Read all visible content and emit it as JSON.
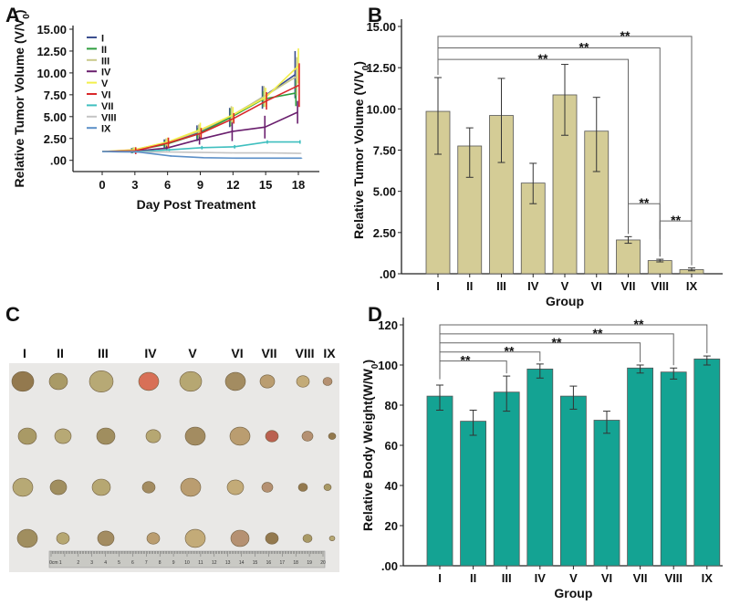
{
  "panels": {
    "a": "A",
    "b": "B",
    "c": "C",
    "d": "D"
  },
  "chart_data": [
    {
      "panel": "A",
      "type": "line",
      "xlabel": "Day Post Treatment",
      "ylabel_main": "Relative Tumor Volume (V/V",
      "ylabel_sub": "0",
      "ylabel_end": ")",
      "x": [
        0,
        3,
        6,
        9,
        12,
        15,
        18
      ],
      "ylim": [
        0,
        15
      ],
      "yticks": [
        ".00",
        "2.50",
        "5.00",
        "7.50",
        "10.00",
        "12.50",
        "15.00"
      ],
      "legend": "top-left",
      "series": [
        {
          "name": "I",
          "color": "#3c4f8f",
          "values": [
            1,
            1.1,
            1.9,
            3.1,
            4.9,
            7.2,
            9.8
          ],
          "err": [
            0,
            0.3,
            0.5,
            0.9,
            1.1,
            1.3,
            2.7
          ]
        },
        {
          "name": "II",
          "color": "#2e9e3e",
          "values": [
            1,
            1.1,
            1.8,
            3.0,
            4.9,
            7.0,
            7.7
          ],
          "err": [
            0,
            0.3,
            0.5,
            0.7,
            1.0,
            0.9,
            1.5
          ]
        },
        {
          "name": "III",
          "color": "#c9c98a",
          "values": [
            1,
            1.2,
            2.0,
            3.3,
            5.1,
            7.3,
            9.6
          ],
          "err": [
            0,
            0.3,
            0.5,
            0.8,
            1.1,
            1.2,
            2.2
          ]
        },
        {
          "name": "IV",
          "color": "#6a1f6e",
          "values": [
            1,
            1.05,
            1.4,
            2.4,
            3.3,
            3.8,
            5.5
          ],
          "err": [
            0,
            0.2,
            0.3,
            0.6,
            1.1,
            1.3,
            1.3
          ]
        },
        {
          "name": "V",
          "color": "#f2ef4a",
          "values": [
            1,
            1.2,
            2.1,
            3.5,
            5.2,
            7.2,
            10.8
          ],
          "err": [
            0,
            0.3,
            0.5,
            0.8,
            0.9,
            1.1,
            2.0
          ]
        },
        {
          "name": "VI",
          "color": "#d9282a",
          "values": [
            1,
            1.1,
            2.0,
            3.1,
            4.8,
            6.8,
            8.6
          ],
          "err": [
            0,
            0.4,
            0.6,
            0.6,
            0.6,
            1.0,
            2.5
          ]
        },
        {
          "name": "VII",
          "color": "#3fbfbf",
          "values": [
            1,
            1.0,
            1.2,
            1.45,
            1.55,
            2.1,
            2.1
          ],
          "err": [
            0,
            0.1,
            0.15,
            0.2,
            0.2,
            0.2,
            0.2
          ]
        },
        {
          "name": "VIII",
          "color": "#c4c4c4",
          "values": [
            1,
            0.95,
            0.95,
            0.9,
            0.85,
            0.85,
            0.8
          ],
          "err": [
            0,
            0.05,
            0.05,
            0.06,
            0.05,
            0.05,
            0.05
          ]
        },
        {
          "name": "IX",
          "color": "#5b8fc7",
          "values": [
            1,
            0.95,
            0.5,
            0.3,
            0.25,
            0.25,
            0.25
          ],
          "err": [
            0,
            0.05,
            0.08,
            0.04,
            0.03,
            0.03,
            0.03
          ]
        }
      ]
    },
    {
      "panel": "B",
      "type": "bar",
      "xlabel": "Group",
      "ylabel_main": "Relative Tumor Volume (V/V",
      "ylabel_sub": "0",
      "ylabel_end": ")",
      "categories": [
        "I",
        "II",
        "III",
        "IV",
        "V",
        "VI",
        "VII",
        "VIII",
        "IX"
      ],
      "values": [
        9.85,
        7.75,
        9.6,
        5.5,
        10.85,
        8.65,
        2.05,
        0.8,
        0.25
      ],
      "err_low": [
        7.25,
        5.85,
        6.75,
        4.25,
        8.4,
        6.2,
        1.85,
        0.72,
        0.18
      ],
      "err_high": [
        11.9,
        8.85,
        11.85,
        6.7,
        12.7,
        10.7,
        2.25,
        0.88,
        0.35
      ],
      "ylim": [
        0,
        15
      ],
      "yticks": [
        ".00",
        "2.50",
        "5.00",
        "7.50",
        "10.00",
        "12.50",
        "15.00"
      ],
      "bar_color": "#d4cc96",
      "significance": [
        {
          "from": "I",
          "to": "VII",
          "label": "**",
          "level": 13.0
        },
        {
          "from": "I",
          "to": "VIII",
          "label": "**",
          "level": 13.7
        },
        {
          "from": "I",
          "to": "IX",
          "label": "**",
          "level": 14.4
        },
        {
          "from": "VII",
          "to": "VIII",
          "label": "**",
          "level": 4.25
        },
        {
          "from": "VIII",
          "to": "IX",
          "label": "**",
          "level": 3.2
        }
      ]
    },
    {
      "panel": "D",
      "type": "bar",
      "xlabel": "Group",
      "ylabel_main": "Relative Body Weight(W/W",
      "ylabel_sub": "0",
      "ylabel_end": ")",
      "categories": [
        "I",
        "II",
        "III",
        "IV",
        "V",
        "VI",
        "VII",
        "VIII",
        "IX"
      ],
      "values": [
        84.5,
        72,
        86.5,
        98,
        84.5,
        72.5,
        98.5,
        96.5,
        103
      ],
      "err_low": [
        77.5,
        65,
        77,
        93.5,
        78,
        66,
        96,
        93,
        100
      ],
      "err_high": [
        90,
        77.5,
        94.5,
        100.5,
        89.5,
        77,
        100,
        98.5,
        104.5
      ],
      "ylim": [
        0,
        120
      ],
      "yticks": [
        ".00",
        "20",
        "40",
        "60",
        "80",
        "100",
        "120"
      ],
      "bar_color": "#14a393",
      "significance": [
        {
          "from": "I",
          "to": "III",
          "label": "**",
          "level": 102
        },
        {
          "from": "I",
          "to": "IV",
          "label": "**",
          "level": 106.5
        },
        {
          "from": "I",
          "to": "VII",
          "label": "**",
          "level": 111
        },
        {
          "from": "I",
          "to": "VIII",
          "label": "**",
          "level": 115.5
        },
        {
          "from": "I",
          "to": "IX",
          "label": "**",
          "level": 120
        }
      ]
    }
  ],
  "photo": {
    "column_labels": [
      "I",
      "II",
      "III",
      "IV",
      "V",
      "VI",
      "VII",
      "VIII",
      "IX"
    ],
    "ruler_labels": [
      "0cm 1",
      "2",
      "3",
      "4",
      "5",
      "6",
      "7",
      "8",
      "9",
      "10",
      "11",
      "12",
      "13",
      "14",
      "15",
      "16",
      "17",
      "18",
      "19",
      "20"
    ]
  }
}
